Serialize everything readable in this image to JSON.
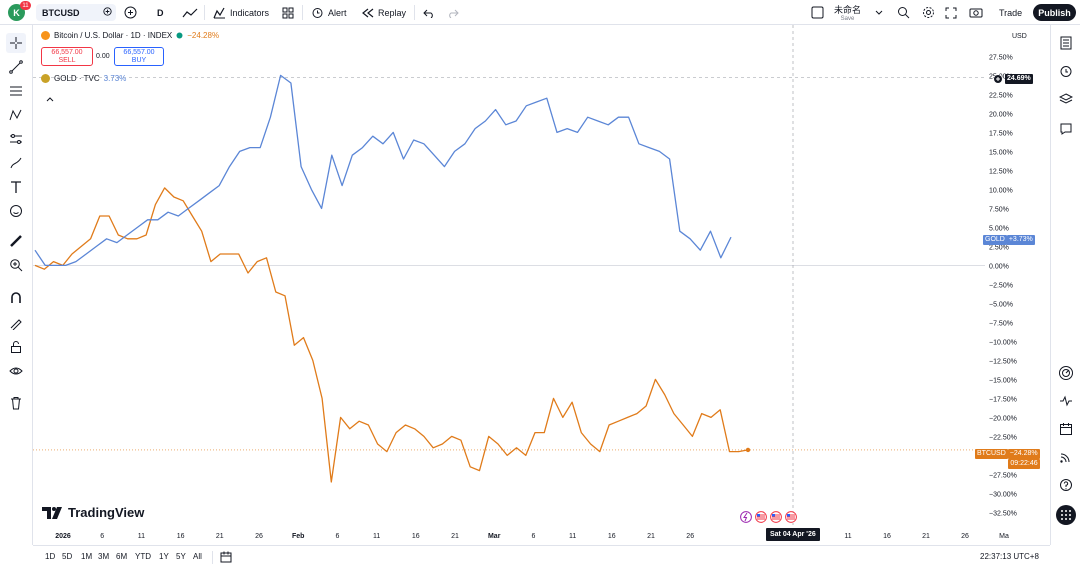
{
  "topbar": {
    "avatar_letter": "K",
    "notifications": "11",
    "symbol": "BTCUSD",
    "interval": "D",
    "indicators_label": "Indicators",
    "alert_label": "Alert",
    "replay_label": "Replay",
    "layout_name": "未命名",
    "layout_sub": "Save",
    "trade_label": "Trade",
    "publish_label": "Publish"
  },
  "legend": {
    "main_title": "Bitcoin / U.S. Dollar · 1D · INDEX",
    "main_change": "−24.28%",
    "sell_price": "66,557.00",
    "sell_label": "SELL",
    "spread": "0.00",
    "buy_price": "66,557.00",
    "buy_label": "BUY",
    "compare_title": "GOLD · TVC",
    "compare_change": "3.73%"
  },
  "price_axis": {
    "currency": "USD",
    "crosshair_label": "24.69%",
    "gold_tag_name": "GOLD",
    "gold_tag_value": "+3.73%",
    "btc_tag_name": "BTCUSD",
    "btc_tag_value": "−24.28%",
    "btc_countdown": "09:22:46"
  },
  "time_axis": {
    "crosshair_label": "Sat 04 Apr '26"
  },
  "bottombar": {
    "ranges": [
      "1D",
      "5D",
      "1M",
      "3M",
      "6M",
      "YTD",
      "1Y",
      "5Y",
      "All"
    ],
    "clock": "22:37:13 UTC+8"
  },
  "watermark": "TradingView",
  "colors": {
    "btc": "#e07b1a",
    "gold": "#5b86d6",
    "accent": "#2962ff",
    "sell": "#f23645"
  },
  "chart_data": {
    "type": "line",
    "x_labels": [
      "2026",
      "6",
      "11",
      "16",
      "21",
      "26",
      "Feb",
      "6",
      "11",
      "16",
      "21",
      "Mar",
      "6",
      "11",
      "16",
      "21",
      "26",
      "11",
      "16",
      "21",
      "26",
      "Ma"
    ],
    "y_ticks": [
      "27.50%",
      "25.00%",
      "22.50%",
      "20.00%",
      "17.50%",
      "15.00%",
      "12.50%",
      "10.00%",
      "7.50%",
      "5.00%",
      "2.50%",
      "0.00%",
      "−2.50%",
      "−5.00%",
      "−7.50%",
      "−10.00%",
      "−12.50%",
      "−15.00%",
      "−17.50%",
      "−20.00%",
      "−22.50%",
      "−25.00%",
      "−27.50%",
      "−30.00%",
      "−32.50%"
    ],
    "ylim": [
      -33.5,
      29
    ],
    "series": [
      {
        "name": "BTCUSD",
        "color": "#e07b1a",
        "values": [
          0.0,
          -0.5,
          0.5,
          0.0,
          1.5,
          2.5,
          3.5,
          6.5,
          6.5,
          4.0,
          3.5,
          3.5,
          4.0,
          8.0,
          10.2,
          9.0,
          8.5,
          6.5,
          4.5,
          0.5,
          1.5,
          1.5,
          1.5,
          -1.0,
          0.5,
          1.0,
          -3.5,
          -4.0,
          -10.5,
          -9.5,
          -12.5,
          -17.5,
          -28.5,
          -20.0,
          -21.5,
          -20.5,
          -21.0,
          -23.5,
          -24.5,
          -22.0,
          -21.0,
          -21.5,
          -22.5,
          -24.0,
          -23.5,
          -22.5,
          -23.0,
          -26.5,
          -27.0,
          -22.5,
          -23.5,
          -25.0,
          -24.0,
          -25.0,
          -22.0,
          -22.0,
          -17.5,
          -20.0,
          -18.0,
          -22.0,
          -23.5,
          -24.5,
          -21.0,
          -20.5,
          -20.0,
          -19.5,
          -18.5,
          -15.0,
          -17.0,
          -19.5,
          -21.0,
          -22.5,
          -19.5,
          -20.0,
          -19.0,
          -24.5,
          -24.5,
          -24.28
        ]
      },
      {
        "name": "GOLD",
        "color": "#5b86d6",
        "values": [
          2.0,
          0.0,
          0.0,
          0.0,
          0.5,
          1.5,
          2.5,
          3.5,
          3.0,
          4.0,
          5.0,
          6.0,
          6.0,
          7.0,
          6.5,
          7.5,
          8.5,
          9.5,
          10.5,
          13.0,
          15.0,
          15.5,
          15.5,
          19.5,
          25.0,
          24.0,
          13.0,
          10.0,
          7.5,
          14.5,
          10.5,
          14.5,
          15.5,
          17.0,
          16.0,
          17.5,
          14.0,
          16.5,
          16.0,
          14.5,
          13.0,
          15.0,
          16.0,
          18.0,
          19.0,
          20.5,
          18.5,
          19.0,
          21.0,
          21.5,
          22.0,
          17.5,
          18.0,
          17.5,
          19.5,
          19.0,
          18.5,
          19.5,
          19.5,
          16.0,
          15.5,
          15.0,
          14.0,
          4.5,
          3.5,
          2.0,
          4.5,
          1.0,
          3.73
        ]
      }
    ]
  }
}
